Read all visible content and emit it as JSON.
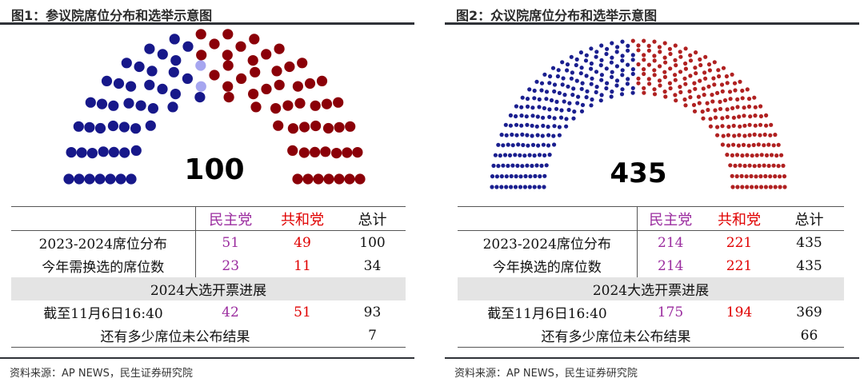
{
  "panels": [
    {
      "title": "图1：参议院席位分布和选举示意图",
      "chart_data": {
        "type": "parliament",
        "total_label": "100",
        "seats": {
          "democrat": 45,
          "independent": 2,
          "republican": 53
        },
        "colors": {
          "democrat": "#17188a",
          "independent": "#a6a6f0",
          "republican": "#8b0008"
        }
      },
      "table": {
        "headers": [
          "",
          "民主党",
          "共和党",
          "总计"
        ],
        "rows": [
          [
            "2023-2024席位分布",
            "51",
            "49",
            "100"
          ],
          [
            "今年需换选的席位数",
            "23",
            "11",
            "34"
          ]
        ],
        "section_label": "2024大选开票进展",
        "progress_row": [
          "截至11月6日16:40",
          "42",
          "51",
          "93"
        ],
        "remaining_label": "还有多少席位未公布结果",
        "remaining_value": "7"
      },
      "source": "资料来源：AP NEWS，民生证券研究院"
    },
    {
      "title": "图2：众议院席位分布和选举示意图",
      "chart_data": {
        "type": "parliament",
        "total_label": "435",
        "seats": {
          "democrat": 214,
          "independent": 0,
          "republican": 221
        },
        "colors": {
          "democrat": "#1a1f8f",
          "independent": "#a6a6f0",
          "republican": "#b02121"
        }
      },
      "table": {
        "headers": [
          "",
          "民主党",
          "共和党",
          "总计"
        ],
        "rows": [
          [
            "2023-2024席位分布",
            "214",
            "221",
            "435"
          ],
          [
            "今年换选的席位数",
            "214",
            "221",
            "435"
          ]
        ],
        "section_label": "2024大选开票进展",
        "progress_row": [
          "截至11月6日16:40",
          "175",
          "194",
          "369"
        ],
        "remaining_label": "还有多少席位未公布结果",
        "remaining_value": "66"
      },
      "source": "资料来源：AP NEWS，民生证券研究院"
    }
  ]
}
